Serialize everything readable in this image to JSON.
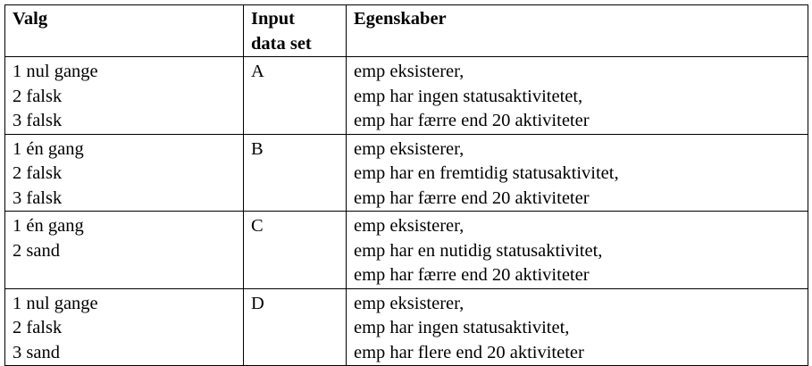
{
  "table": {
    "headers": {
      "valg": "Valg",
      "input_line1": "Input",
      "input_line2": "data set",
      "egenskaber": "Egenskaber"
    },
    "rows": [
      {
        "valg": [
          "1 nul gange",
          "2 falsk",
          "3 falsk"
        ],
        "input": "A",
        "egenskaber": [
          "emp eksisterer,",
          "emp har ingen statusaktivitetet,",
          "emp har færre end 20 aktiviteter"
        ]
      },
      {
        "valg": [
          "1 én gang",
          "2 falsk",
          "3 falsk"
        ],
        "input": "B",
        "egenskaber": [
          "emp eksisterer,",
          "emp har en fremtidig statusaktivitet,",
          "emp har færre end 20 aktiviteter"
        ]
      },
      {
        "valg": [
          "1 én gang",
          "2 sand",
          ""
        ],
        "input": "C",
        "egenskaber": [
          "emp eksisterer,",
          "emp har en nutidig statusaktivitet,",
          "emp har færre end 20 aktiviteter"
        ]
      },
      {
        "valg": [
          "1 nul gange",
          "2 falsk",
          "3 sand"
        ],
        "input": "D",
        "egenskaber": [
          "emp eksisterer,",
          "emp har ingen statusaktivitet,",
          "emp har flere end 20 aktiviteter"
        ]
      }
    ]
  }
}
